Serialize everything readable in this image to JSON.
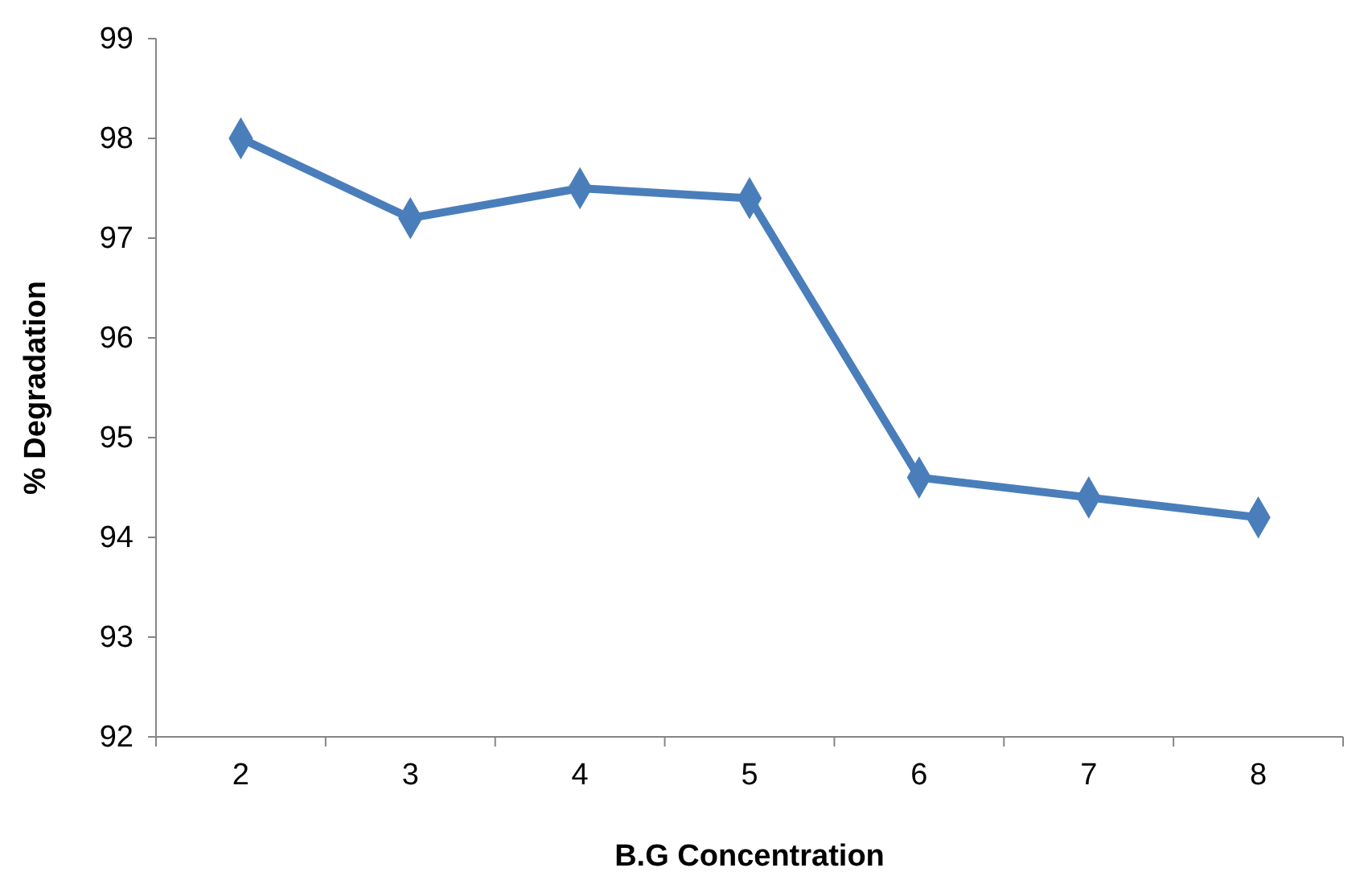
{
  "chart_data": {
    "type": "line",
    "xlabel": "B.G Concentration",
    "ylabel": "% Degradation",
    "categories": [
      "2",
      "3",
      "4",
      "5",
      "6",
      "7",
      "8"
    ],
    "series": [
      {
        "color": "#4a7ebb",
        "values": [
          98,
          97.2,
          97.5,
          97.4,
          94.6,
          94.4,
          94.2
        ]
      }
    ],
    "ylim": [
      92,
      99
    ],
    "yticks": [
      92,
      93,
      94,
      95,
      96,
      97,
      98,
      99
    ],
    "grid": false,
    "marker": "diamond",
    "line_style": "solid"
  }
}
